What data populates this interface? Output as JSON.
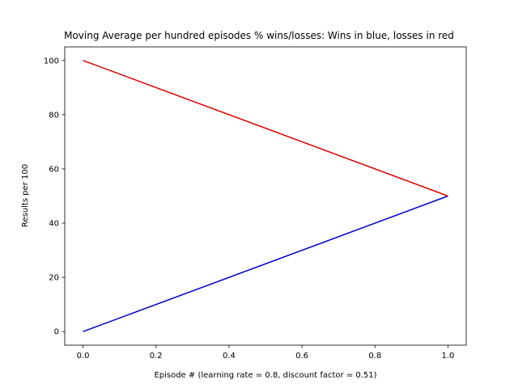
{
  "chart_data": {
    "type": "line",
    "title": "Moving Average per hundred episodes % wins/losses: Wins in blue, losses in red",
    "xlabel": "Episode # (learning rate = 0.8, discount factor = 0.51)",
    "ylabel": "Results per 100",
    "xlim": [
      -0.05,
      1.05
    ],
    "ylim": [
      -5,
      105
    ],
    "x_ticks": [
      "0.0",
      "0.2",
      "0.4",
      "0.6",
      "0.8",
      "1.0"
    ],
    "y_ticks": [
      "0",
      "20",
      "40",
      "60",
      "80",
      "100"
    ],
    "grid": false,
    "series": [
      {
        "color": "#0000cc",
        "x": [
          0,
          1
        ],
        "y": [
          0,
          50
        ]
      },
      {
        "color": "#dd0000",
        "x": [
          0,
          1
        ],
        "y": [
          100,
          50
        ]
      }
    ]
  }
}
